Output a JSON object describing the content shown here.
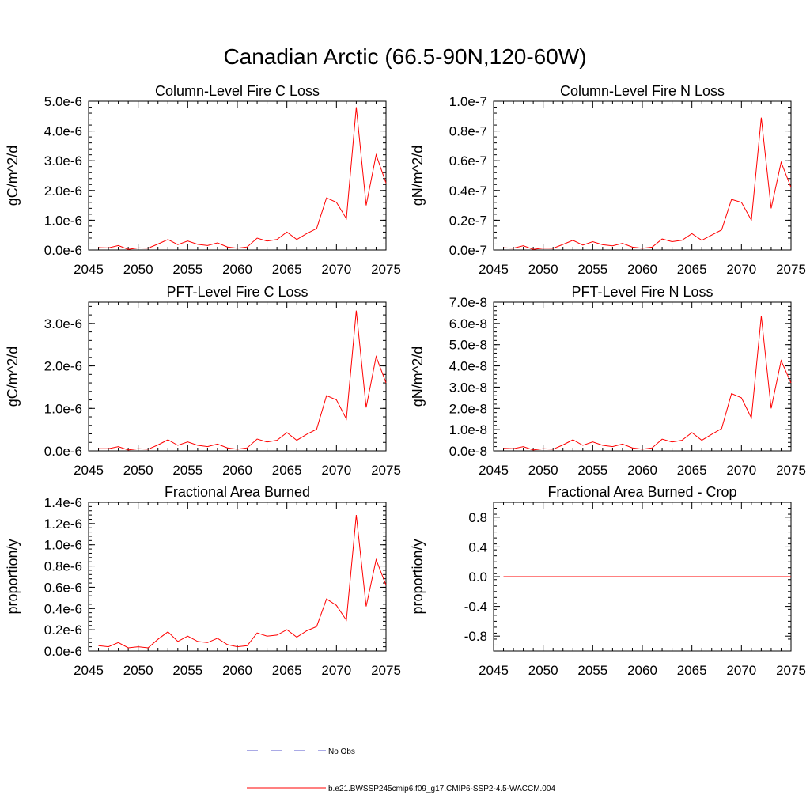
{
  "figure": {
    "title": "Canadian Arctic (66.5-90N,120-60W)"
  },
  "legend": {
    "entries": [
      {
        "label": "No Obs",
        "style": "dashed",
        "color": "#5555cc"
      },
      {
        "label": "b.e21.BWSSP245cmip6.f09_g17.CMIP6-SSP2-4.5-WACCM.004",
        "style": "solid",
        "color": "#ff0000"
      }
    ]
  },
  "chart_data": [
    {
      "type": "line",
      "title": "Column-Level Fire C Loss",
      "xlabel": "",
      "ylabel": "gC/m^2/d",
      "xlim": [
        2045,
        2075
      ],
      "ylim": [
        0,
        5e-06
      ],
      "xticks": [
        2045,
        2050,
        2055,
        2060,
        2065,
        2070,
        2075
      ],
      "xtick_labels": [
        "2045",
        "2050",
        "2055",
        "2060",
        "2065",
        "2070",
        "2075"
      ],
      "yticks": [
        0,
        1e-06,
        2e-06,
        3e-06,
        4e-06,
        5e-06
      ],
      "ytick_labels": [
        "0.0e-6",
        "1.0e-6",
        "2.0e-6",
        "3.0e-6",
        "4.0e-6",
        "5.0e-6"
      ],
      "series": [
        {
          "name": "b.e21.BWSSP245cmip6.f09_g17.CMIP6-SSP2-4.5-WACCM.004",
          "color": "#ff0000",
          "x": [
            2046,
            2047,
            2048,
            2049,
            2050,
            2051,
            2052,
            2053,
            2054,
            2055,
            2056,
            2057,
            2058,
            2059,
            2060,
            2061,
            2062,
            2063,
            2064,
            2065,
            2066,
            2067,
            2068,
            2069,
            2070,
            2071,
            2072,
            2073,
            2074,
            2075
          ],
          "values": [
            8e-08,
            7e-08,
            1.5e-07,
            2e-08,
            7e-08,
            6e-08,
            2e-07,
            3.5e-07,
            1.8e-07,
            3e-07,
            1.9e-07,
            1.5e-07,
            2.4e-07,
            1e-07,
            6e-08,
            1e-07,
            4e-07,
            3e-07,
            3.5e-07,
            6e-07,
            3.5e-07,
            5.5e-07,
            7.2e-07,
            1.75e-06,
            1.6e-06,
            1.05e-06,
            4.8e-06,
            1.5e-06,
            3.2e-06,
            2.25e-06
          ]
        }
      ]
    },
    {
      "type": "line",
      "title": "Column-Level Fire N Loss",
      "xlabel": "",
      "ylabel": "gN/m^2/d",
      "xlim": [
        2045,
        2075
      ],
      "ylim": [
        0,
        1e-07
      ],
      "xticks": [
        2045,
        2050,
        2055,
        2060,
        2065,
        2070,
        2075
      ],
      "xtick_labels": [
        "2045",
        "2050",
        "2055",
        "2060",
        "2065",
        "2070",
        "2075"
      ],
      "yticks": [
        0,
        2e-08,
        4e-08,
        6e-08,
        8e-08,
        1e-07
      ],
      "ytick_labels": [
        "0.0e-7",
        "0.2e-7",
        "0.4e-7",
        "0.6e-7",
        "0.8e-7",
        "1.0e-7"
      ],
      "series": [
        {
          "name": "b.e21.BWSSP245cmip6.f09_g17.CMIP6-SSP2-4.5-WACCM.004",
          "color": "#ff0000",
          "x": [
            2046,
            2047,
            2048,
            2049,
            2050,
            2051,
            2052,
            2053,
            2054,
            2055,
            2056,
            2057,
            2058,
            2059,
            2060,
            2061,
            2062,
            2063,
            2064,
            2065,
            2066,
            2067,
            2068,
            2069,
            2070,
            2071,
            2072,
            2073,
            2074,
            2075
          ],
          "values": [
            1.5e-09,
            1.2e-09,
            2.8e-09,
            4e-10,
            1.3e-09,
            1.1e-09,
            3.7e-09,
            6.5e-09,
            3.3e-09,
            5.6e-09,
            3.5e-09,
            2.8e-09,
            4.4e-09,
            1.9e-09,
            1.1e-09,
            1.9e-09,
            7.4e-09,
            5.6e-09,
            6.5e-09,
            1.1e-08,
            6.5e-09,
            1e-08,
            1.35e-08,
            3.4e-08,
            3.2e-08,
            2e-08,
            8.9e-08,
            2.8e-08,
            5.9e-08,
            4.2e-08
          ]
        }
      ]
    },
    {
      "type": "line",
      "title": "PFT-Level Fire C Loss",
      "xlabel": "",
      "ylabel": "gC/m^2/d",
      "xlim": [
        2045,
        2075
      ],
      "ylim": [
        0,
        3.5e-06
      ],
      "xticks": [
        2045,
        2050,
        2055,
        2060,
        2065,
        2070,
        2075
      ],
      "xtick_labels": [
        "2045",
        "2050",
        "2055",
        "2060",
        "2065",
        "2070",
        "2075"
      ],
      "yticks": [
        0,
        1e-06,
        2e-06,
        3e-06
      ],
      "ytick_labels": [
        "0.0e-6",
        "1.0e-6",
        "2.0e-6",
        "3.0e-6"
      ],
      "series": [
        {
          "name": "b.e21.BWSSP245cmip6.f09_g17.CMIP6-SSP2-4.5-WACCM.004",
          "color": "#ff0000",
          "x": [
            2046,
            2047,
            2048,
            2049,
            2050,
            2051,
            2052,
            2053,
            2054,
            2055,
            2056,
            2057,
            2058,
            2059,
            2060,
            2061,
            2062,
            2063,
            2064,
            2065,
            2066,
            2067,
            2068,
            2069,
            2070,
            2071,
            2072,
            2073,
            2074,
            2075
          ],
          "values": [
            5e-08,
            5e-08,
            1e-07,
            2e-08,
            5e-08,
            4e-08,
            1.4e-07,
            2.6e-07,
            1.3e-07,
            2.1e-07,
            1.3e-07,
            1e-07,
            1.6e-07,
            7e-08,
            4e-08,
            7e-08,
            2.8e-07,
            2.1e-07,
            2.5e-07,
            4.3e-07,
            2.5e-07,
            3.9e-07,
            5.1e-07,
            1.3e-06,
            1.2e-06,
            7.5e-07,
            3.3e-06,
            1.02e-06,
            2.22e-06,
            1.6e-06
          ]
        }
      ]
    },
    {
      "type": "line",
      "title": "PFT-Level Fire N Loss",
      "xlabel": "",
      "ylabel": "gN/m^2/d",
      "xlim": [
        2045,
        2075
      ],
      "ylim": [
        0,
        7e-08
      ],
      "xticks": [
        2045,
        2050,
        2055,
        2060,
        2065,
        2070,
        2075
      ],
      "xtick_labels": [
        "2045",
        "2050",
        "2055",
        "2060",
        "2065",
        "2070",
        "2075"
      ],
      "yticks": [
        0,
        1e-08,
        2e-08,
        3e-08,
        4e-08,
        5e-08,
        6e-08,
        7e-08
      ],
      "ytick_labels": [
        "0.0e-8",
        "1.0e-8",
        "2.0e-8",
        "3.0e-8",
        "4.0e-8",
        "5.0e-8",
        "6.0e-8",
        "7.0e-8"
      ],
      "series": [
        {
          "name": "b.e21.BWSSP245cmip6.f09_g17.CMIP6-SSP2-4.5-WACCM.004",
          "color": "#ff0000",
          "x": [
            2046,
            2047,
            2048,
            2049,
            2050,
            2051,
            2052,
            2053,
            2054,
            2055,
            2056,
            2057,
            2058,
            2059,
            2060,
            2061,
            2062,
            2063,
            2064,
            2065,
            2066,
            2067,
            2068,
            2069,
            2070,
            2071,
            2072,
            2073,
            2074,
            2075
          ],
          "values": [
            1.2e-09,
            1e-09,
            2e-09,
            4e-10,
            1e-09,
            8e-10,
            2.8e-09,
            5.2e-09,
            2.6e-09,
            4.2e-09,
            2.6e-09,
            2e-09,
            3.2e-09,
            1.4e-09,
            8e-10,
            1.4e-09,
            5.5e-09,
            4.2e-09,
            5e-09,
            8.6e-09,
            5e-09,
            7.8e-09,
            1.05e-08,
            2.7e-08,
            2.5e-08,
            1.55e-08,
            6.35e-08,
            2e-08,
            4.25e-08,
            3.2e-08
          ]
        }
      ]
    },
    {
      "type": "line",
      "title": "Fractional Area Burned",
      "xlabel": "",
      "ylabel": "proportion/y",
      "xlim": [
        2045,
        2075
      ],
      "ylim": [
        0,
        1.4e-06
      ],
      "xticks": [
        2045,
        2050,
        2055,
        2060,
        2065,
        2070,
        2075
      ],
      "xtick_labels": [
        "2045",
        "2050",
        "2055",
        "2060",
        "2065",
        "2070",
        "2075"
      ],
      "yticks": [
        0,
        2e-07,
        4e-07,
        6e-07,
        8e-07,
        1e-06,
        1.2e-06,
        1.4e-06
      ],
      "ytick_labels": [
        "0.0e-6",
        "0.2e-6",
        "0.4e-6",
        "0.6e-6",
        "0.8e-6",
        "1.0e-6",
        "1.2e-6",
        "1.4e-6"
      ],
      "series": [
        {
          "name": "b.e21.BWSSP245cmip6.f09_g17.CMIP6-SSP2-4.5-WACCM.004",
          "color": "#ff0000",
          "x": [
            2046,
            2047,
            2048,
            2049,
            2050,
            2051,
            2052,
            2053,
            2054,
            2055,
            2056,
            2057,
            2058,
            2059,
            2060,
            2061,
            2062,
            2063,
            2064,
            2065,
            2066,
            2067,
            2068,
            2069,
            2070,
            2071,
            2072,
            2073,
            2074,
            2075
          ],
          "values": [
            5e-08,
            4e-08,
            8e-08,
            3e-08,
            4e-08,
            3e-08,
            1.1e-07,
            1.8e-07,
            9e-08,
            1.4e-07,
            9e-08,
            8e-08,
            1.2e-07,
            6e-08,
            4e-08,
            5e-08,
            1.7e-07,
            1.4e-07,
            1.5e-07,
            2e-07,
            1.3e-07,
            1.9e-07,
            2.3e-07,
            4.9e-07,
            4.3e-07,
            2.9e-07,
            1.28e-06,
            4.2e-07,
            8.6e-07,
            6.2e-07
          ]
        }
      ]
    },
    {
      "type": "line",
      "title": "Fractional Area Burned - Crop",
      "xlabel": "",
      "ylabel": "proportion/y",
      "xlim": [
        2045,
        2075
      ],
      "ylim": [
        -1.0,
        1.0
      ],
      "xticks": [
        2045,
        2050,
        2055,
        2060,
        2065,
        2070,
        2075
      ],
      "xtick_labels": [
        "2045",
        "2050",
        "2055",
        "2060",
        "2065",
        "2070",
        "2075"
      ],
      "yticks": [
        -0.8,
        -0.4,
        0,
        0.4,
        0.8
      ],
      "ytick_labels": [
        "-0.8",
        "-0.4",
        "0.0",
        "0.4",
        "0.8"
      ],
      "series": [
        {
          "name": "b.e21.BWSSP245cmip6.f09_g17.CMIP6-SSP2-4.5-WACCM.004",
          "color": "#ff0000",
          "x": [
            2046,
            2047,
            2048,
            2049,
            2050,
            2051,
            2052,
            2053,
            2054,
            2055,
            2056,
            2057,
            2058,
            2059,
            2060,
            2061,
            2062,
            2063,
            2064,
            2065,
            2066,
            2067,
            2068,
            2069,
            2070,
            2071,
            2072,
            2073,
            2074,
            2075
          ],
          "values": [
            0,
            0,
            0,
            0,
            0,
            0,
            0,
            0,
            0,
            0,
            0,
            0,
            0,
            0,
            0,
            0,
            0,
            0,
            0,
            0,
            0,
            0,
            0,
            0,
            0,
            0,
            0,
            0,
            0,
            0
          ]
        }
      ]
    }
  ]
}
